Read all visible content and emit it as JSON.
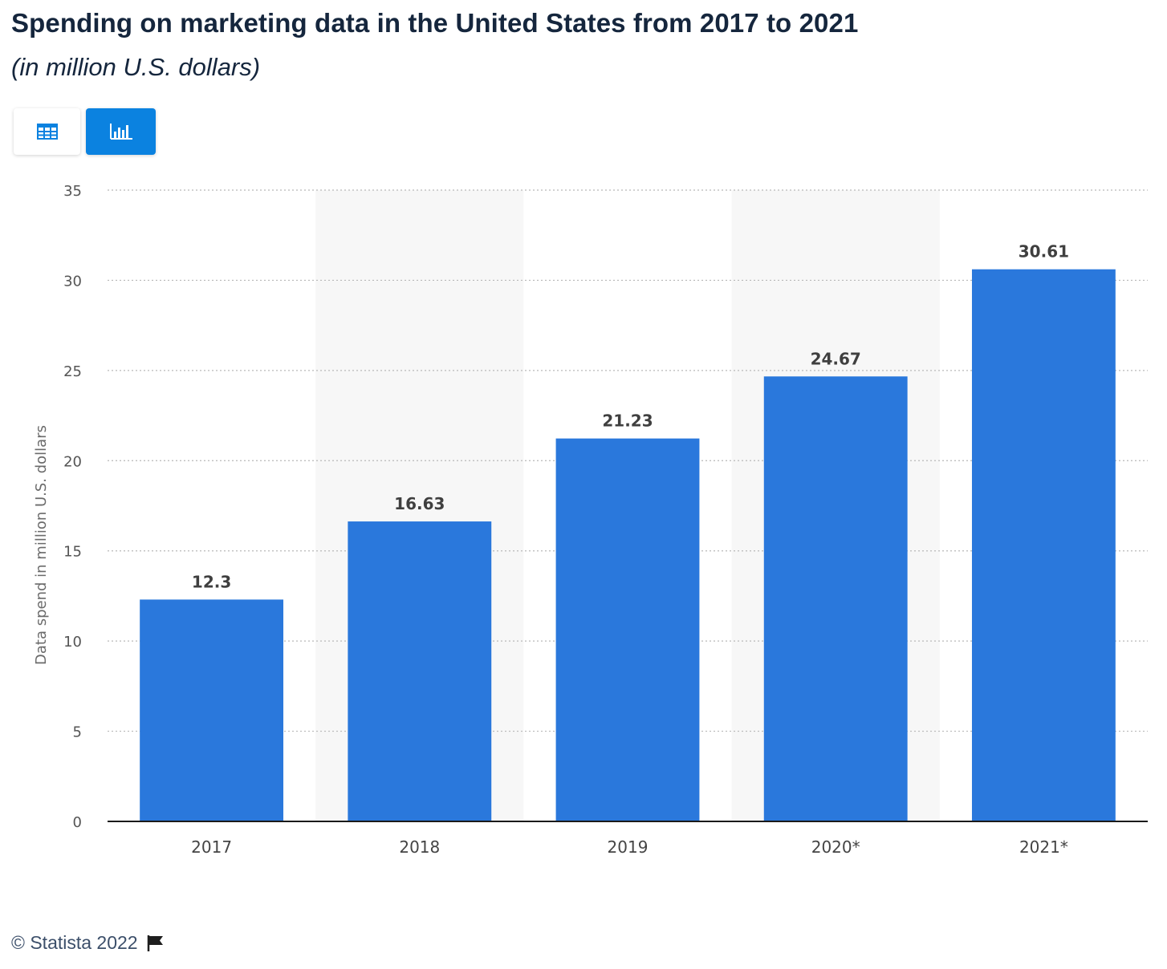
{
  "header": {
    "title": "Spending on marketing data in the United States from 2017 to 2021",
    "subtitle": "(in million U.S. dollars)"
  },
  "toolbar": {
    "table_icon": "table-icon",
    "chart_icon": "bar-chart-icon",
    "active_view": "chart"
  },
  "footer": {
    "copyright": "© Statista 2022",
    "flag_icon": "flag-icon"
  },
  "colors": {
    "bar": "#2a78dc",
    "accent": "#0b82e0",
    "band": "#f7f7f7",
    "grid": "#b8b8b8"
  },
  "chart_data": {
    "type": "bar",
    "categories": [
      "2017",
      "2018",
      "2019",
      "2020*",
      "2021*"
    ],
    "values": [
      12.3,
      16.63,
      21.23,
      24.67,
      30.61
    ],
    "data_labels": [
      "12.3",
      "16.63",
      "21.23",
      "24.67",
      "30.61"
    ],
    "ylabel": "Data spend in million U.S. dollars",
    "xlabel": "",
    "ylim": [
      0,
      35
    ],
    "yticks": [
      0,
      5,
      10,
      15,
      20,
      25,
      30,
      35
    ],
    "grid": true,
    "legend": "none"
  }
}
